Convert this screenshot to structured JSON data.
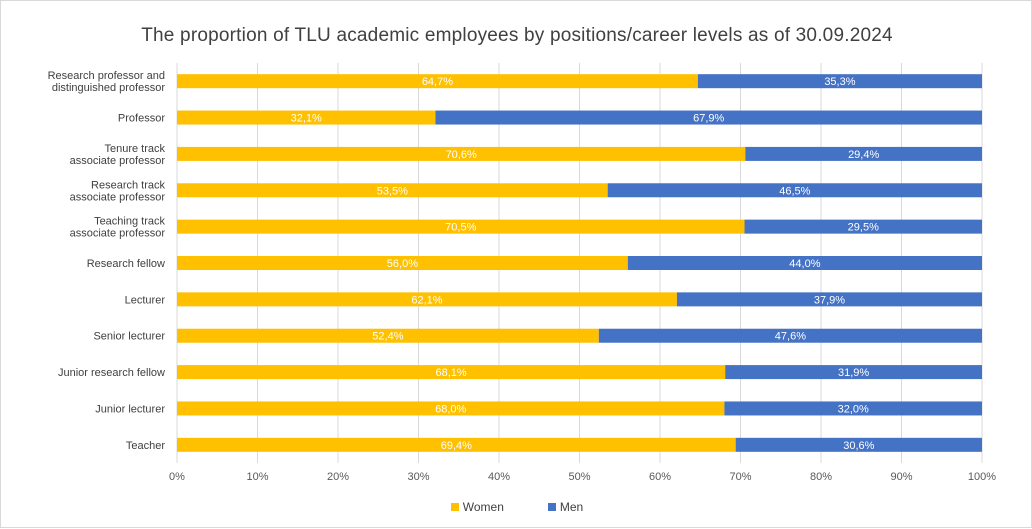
{
  "chart_data": {
    "type": "bar",
    "orientation": "horizontal",
    "stacked": true,
    "title": "The proportion of TLU academic employees by positions/career levels as of 30.09.2024",
    "categories": [
      "Research professor and distinguished professor",
      "Professor",
      "Tenure track associate professor",
      "Research track associate professor",
      "Teaching track associate professor",
      "Research fellow",
      "Lecturer",
      "Senior lecturer",
      "Junior research fellow",
      "Junior lecturer",
      "Teacher"
    ],
    "category_lines": [
      [
        "Research professor and",
        "distinguished professor"
      ],
      [
        "Professor"
      ],
      [
        "Tenure track",
        "associate professor"
      ],
      [
        "Research track",
        "associate professor"
      ],
      [
        "Teaching track",
        "associate professor"
      ],
      [
        "Research fellow"
      ],
      [
        "Lecturer"
      ],
      [
        "Senior lecturer"
      ],
      [
        "Junior research fellow"
      ],
      [
        "Junior lecturer"
      ],
      [
        "Teacher"
      ]
    ],
    "series": [
      {
        "name": "Women",
        "color": "#FFC000",
        "values": [
          64.7,
          32.1,
          70.6,
          53.5,
          70.5,
          56.0,
          62.1,
          52.4,
          68.1,
          68.0,
          69.4
        ],
        "labels": [
          "64,7%",
          "32,1%",
          "70,6%",
          "53,5%",
          "70,5%",
          "56,0%",
          "62,1%",
          "52,4%",
          "68,1%",
          "68,0%",
          "69,4%"
        ]
      },
      {
        "name": "Men",
        "color": "#4472C4",
        "values": [
          35.3,
          67.9,
          29.4,
          46.5,
          29.5,
          44.0,
          37.9,
          47.6,
          31.9,
          32.0,
          30.6
        ],
        "labels": [
          "35,3%",
          "67,9%",
          "29,4%",
          "46,5%",
          "29,5%",
          "44,0%",
          "37,9%",
          "47,6%",
          "31,9%",
          "32,0%",
          "30,6%"
        ]
      }
    ],
    "xlim": [
      0,
      100
    ],
    "x_ticks": [
      "0%",
      "10%",
      "20%",
      "30%",
      "40%",
      "50%",
      "60%",
      "70%",
      "80%",
      "90%",
      "100%"
    ],
    "grid": true,
    "legend": "bottom"
  }
}
